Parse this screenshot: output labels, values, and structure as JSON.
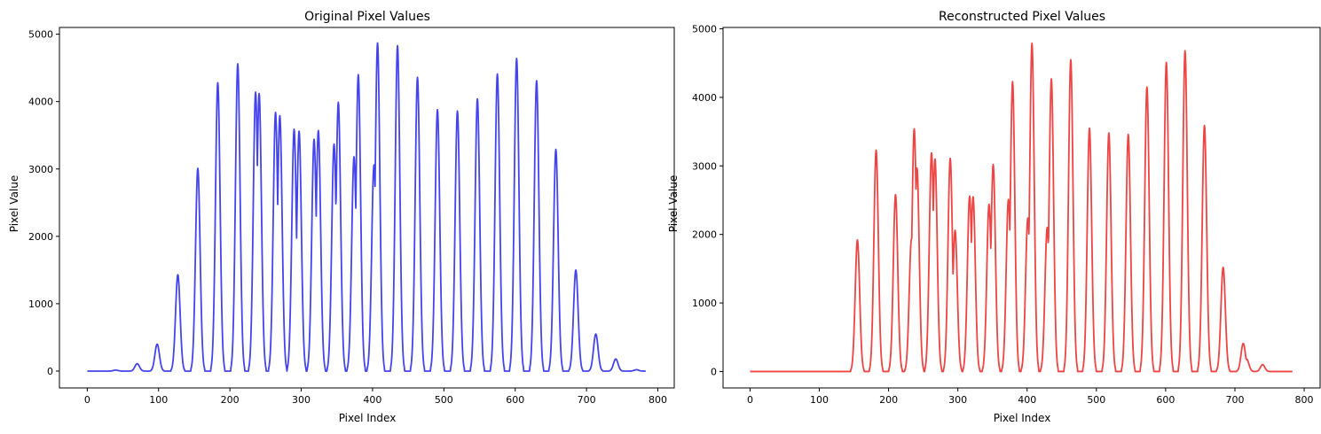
{
  "chart_data": [
    {
      "type": "line",
      "title": "Original Pixel Values",
      "xlabel": "Pixel Index",
      "ylabel": "Pixel Value",
      "xlim": [
        -39,
        823
      ],
      "ylim": [
        -250,
        5100
      ],
      "xticks": [
        0,
        100,
        200,
        300,
        400,
        500,
        600,
        700,
        800
      ],
      "yticks": [
        0,
        1000,
        2000,
        3000,
        4000,
        5000
      ],
      "grid": false,
      "color": "#4444ee",
      "base": 0,
      "peaks": [
        {
          "x": 40,
          "y": 15
        },
        {
          "x": 70,
          "y": 110
        },
        {
          "x": 98,
          "y": 400
        },
        {
          "x": 127,
          "y": 1430
        },
        {
          "x": 155,
          "y": 3010
        },
        {
          "x": 183,
          "y": 4280
        },
        {
          "x": 211,
          "y": 4560
        },
        {
          "x": 236,
          "y": 4140
        },
        {
          "x": 241,
          "y": 4120
        },
        {
          "x": 264,
          "y": 3840
        },
        {
          "x": 270,
          "y": 3790
        },
        {
          "x": 290,
          "y": 3590
        },
        {
          "x": 297,
          "y": 3560
        },
        {
          "x": 318,
          "y": 3440
        },
        {
          "x": 324,
          "y": 3570
        },
        {
          "x": 346,
          "y": 3370
        },
        {
          "x": 352,
          "y": 3990
        },
        {
          "x": 374,
          "y": 3180
        },
        {
          "x": 380,
          "y": 4400
        },
        {
          "x": 402,
          "y": 3060
        },
        {
          "x": 407,
          "y": 4870
        },
        {
          "x": 435,
          "y": 4830
        },
        {
          "x": 463,
          "y": 4360
        },
        {
          "x": 491,
          "y": 3880
        },
        {
          "x": 519,
          "y": 3860
        },
        {
          "x": 547,
          "y": 4040
        },
        {
          "x": 575,
          "y": 4410
        },
        {
          "x": 602,
          "y": 4640
        },
        {
          "x": 630,
          "y": 4310
        },
        {
          "x": 657,
          "y": 3290
        },
        {
          "x": 685,
          "y": 1500
        },
        {
          "x": 713,
          "y": 550
        },
        {
          "x": 741,
          "y": 180
        },
        {
          "x": 770,
          "y": 20
        }
      ]
    },
    {
      "type": "line",
      "title": "Reconstructed Pixel Values",
      "xlabel": "Pixel Index",
      "ylabel": "Pixel Value",
      "xlim": [
        -39,
        823
      ],
      "ylim": [
        -240,
        5020
      ],
      "xticks": [
        0,
        100,
        200,
        300,
        400,
        500,
        600,
        700,
        800
      ],
      "yticks": [
        0,
        1000,
        2000,
        3000,
        4000,
        5000
      ],
      "grid": false,
      "color": "#ee4444",
      "base": 0,
      "peaks": [
        {
          "x": 155,
          "y": 1920
        },
        {
          "x": 182,
          "y": 3230
        },
        {
          "x": 210,
          "y": 2580
        },
        {
          "x": 233,
          "y": 1930
        },
        {
          "x": 237,
          "y": 3540
        },
        {
          "x": 241,
          "y": 2970
        },
        {
          "x": 262,
          "y": 3190
        },
        {
          "x": 267,
          "y": 3100
        },
        {
          "x": 289,
          "y": 3110
        },
        {
          "x": 296,
          "y": 2060
        },
        {
          "x": 317,
          "y": 2560
        },
        {
          "x": 322,
          "y": 2550
        },
        {
          "x": 345,
          "y": 2440
        },
        {
          "x": 351,
          "y": 3020
        },
        {
          "x": 373,
          "y": 2510
        },
        {
          "x": 379,
          "y": 4230
        },
        {
          "x": 401,
          "y": 2240
        },
        {
          "x": 407,
          "y": 4790
        },
        {
          "x": 429,
          "y": 2100
        },
        {
          "x": 435,
          "y": 4270
        },
        {
          "x": 463,
          "y": 4550
        },
        {
          "x": 490,
          "y": 3550
        },
        {
          "x": 518,
          "y": 3480
        },
        {
          "x": 546,
          "y": 3460
        },
        {
          "x": 573,
          "y": 4150
        },
        {
          "x": 601,
          "y": 4510
        },
        {
          "x": 628,
          "y": 4680
        },
        {
          "x": 656,
          "y": 3590
        },
        {
          "x": 683,
          "y": 1520
        },
        {
          "x": 712,
          "y": 410
        },
        {
          "x": 717,
          "y": 180
        },
        {
          "x": 740,
          "y": 100
        }
      ]
    }
  ]
}
